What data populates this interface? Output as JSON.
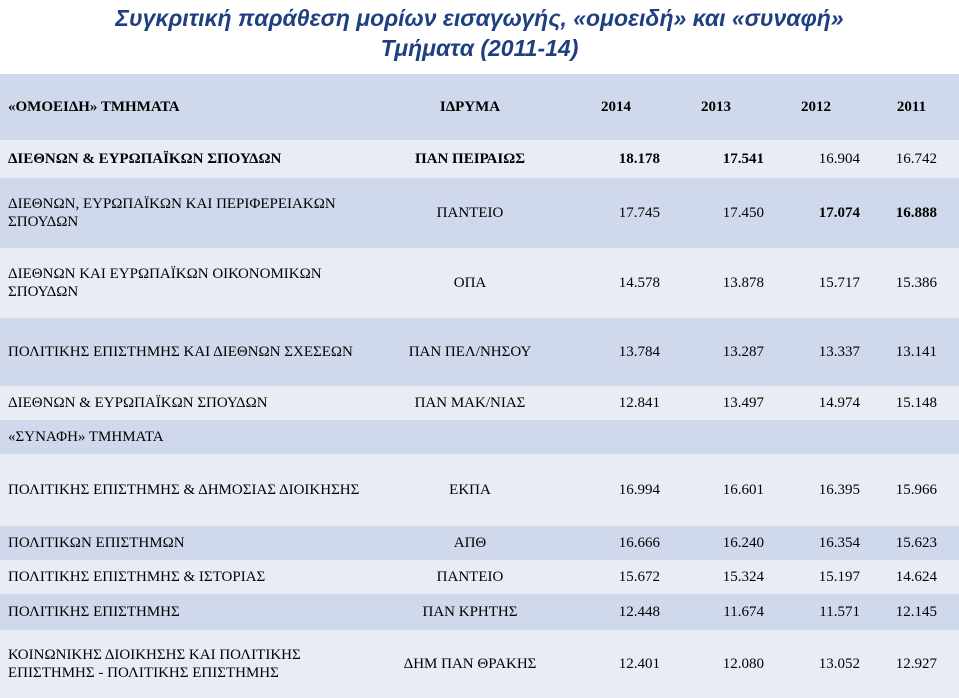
{
  "title": {
    "line1": "Συγκριτική παράθεση μορίων εισαγωγής, «ομοειδή» και «συναφή»",
    "line2": "Τμήματα (2011-14)"
  },
  "table": {
    "header": {
      "department": "«ΟΜΟΕΙΔΗ» ΤΜΗΜΑΤΑ",
      "institution": "ΙΔΡΥΜΑ",
      "y2014": "2014",
      "y2013": "2013",
      "y2012": "2012",
      "y2011": "2011"
    },
    "rows": [
      {
        "department": "ΔΙΕΘΝΩΝ & ΕΥΡΩΠΑΪΚΩΝ ΣΠΟΥΔΩΝ",
        "institution": "ΠΑΝ ΠΕΙΡΑΙΩΣ",
        "y2014": "18.178",
        "y2013": "17.541",
        "y2012": "16.904",
        "y2011": "16.742"
      },
      {
        "department": "ΔΙΕΘΝΩΝ, ΕΥΡΩΠΑΪΚΩΝ ΚΑΙ ΠΕΡΙΦΕΡΕΙΑΚΩΝ ΣΠΟΥΔΩΝ",
        "institution": "ΠΑΝΤΕΙΟ",
        "y2014": "17.745",
        "y2013": "17.450",
        "y2012": "17.074",
        "y2011": "16.888"
      },
      {
        "department": "ΔΙΕΘΝΩΝ ΚΑΙ ΕΥΡΩΠΑΪΚΩΝ ΟΙΚΟΝΟΜΙΚΩΝ ΣΠΟΥΔΩΝ",
        "institution": "ΟΠΑ",
        "y2014": "14.578",
        "y2013": "13.878",
        "y2012": "15.717",
        "y2011": "15.386"
      },
      {
        "department": "ΠΟΛΙΤΙΚΗΣ ΕΠΙΣΤΗΜΗΣ ΚΑΙ ΔΙΕΘΝΩΝ ΣΧΕΣΕΩΝ",
        "institution": "ΠΑΝ ΠΕΛ/ΝΗΣΟΥ",
        "y2014": "13.784",
        "y2013": "13.287",
        "y2012": "13.337",
        "y2011": "13.141"
      },
      {
        "department": "ΔΙΕΘΝΩΝ & ΕΥΡΩΠΑΪΚΩΝ ΣΠΟΥΔΩΝ",
        "institution": "ΠΑΝ ΜΑΚ/ΝΙΑΣ",
        "y2014": "12.841",
        "y2013": "13.497",
        "y2012": "14.974",
        "y2011": "15.148"
      }
    ],
    "section2_label": "«ΣΥΝΑΦΗ» ΤΜΗΜΑΤΑ",
    "rows2": [
      {
        "department": "ΠΟΛΙΤΙΚΗΣ ΕΠΙΣΤΗΜΗΣ & ΔΗΜΟΣΙΑΣ ΔΙΟΙΚΗΣΗΣ",
        "institution": "ΕΚΠΑ",
        "y2014": "16.994",
        "y2013": "16.601",
        "y2012": "16.395",
        "y2011": "15.966"
      },
      {
        "department": "ΠΟΛΙΤΙΚΩΝ ΕΠΙΣΤΗΜΩΝ",
        "institution": "ΑΠΘ",
        "y2014": "16.666",
        "y2013": "16.240",
        "y2012": "16.354",
        "y2011": "15.623"
      },
      {
        "department": "ΠΟΛΙΤΙΚΗΣ ΕΠΙΣΤΗΜΗΣ & ΙΣΤΟΡΙΑΣ",
        "institution": "ΠΑΝΤΕΙΟ",
        "y2014": "15.672",
        "y2013": "15.324",
        "y2012": "15.197",
        "y2011": "14.624"
      },
      {
        "department": "ΠΟΛΙΤΙΚΗΣ ΕΠΙΣΤΗΜΗΣ",
        "institution": "ΠΑΝ ΚΡΗΤΗΣ",
        "y2014": "12.448",
        "y2013": "11.674",
        "y2012": "11.571",
        "y2011": "12.145"
      },
      {
        "department": "ΚΟΙΝΩΝΙΚΗΣ ΔΙΟΙΚΗΣΗΣ ΚΑΙ ΠΟΛΙΤΙΚΗΣ ΕΠΙΣΤΗΜΗΣ - ΠΟΛΙΤΙΚΗΣ ΕΠΙΣΤΗΜΗΣ",
        "institution": "ΔΗΜ ΠΑΝ ΘΡΑΚΗΣ",
        "y2014": "12.401",
        "y2013": "12.080",
        "y2012": "13.052",
        "y2011": "12.927"
      }
    ]
  },
  "colors": {
    "title": "#1f3f82",
    "band_dark": "#cfd9eb",
    "band_light": "#e7ecf5"
  }
}
